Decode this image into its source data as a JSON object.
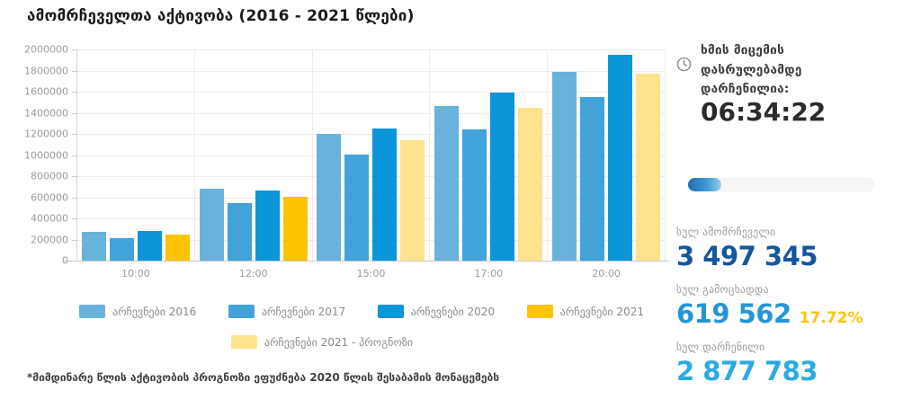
{
  "title": "ამომრჩეველთა აქტივობა (2016 - 2021 წლები)",
  "chart_data": {
    "type": "bar",
    "title": "ამომრჩეველთა აქტივობა (2016 - 2021 წლები)",
    "categories": [
      "10:00",
      "12:00",
      "15:00",
      "17:00",
      "20:00"
    ],
    "series": [
      {
        "name": "არჩევნები 2016",
        "color": "#68B2DC",
        "values": [
          270000,
          680000,
          1200000,
          1460000,
          1790000
        ]
      },
      {
        "name": "არჩევნები 2017",
        "color": "#41A3D9",
        "values": [
          215000,
          545000,
          1000000,
          1245000,
          1545000
        ]
      },
      {
        "name": "არჩევნები 2020",
        "color": "#0A96D9",
        "values": [
          280000,
          660000,
          1255000,
          1590000,
          1945000
        ]
      },
      {
        "name": "არჩევნები 2021",
        "color": "#FCC400",
        "values": [
          245000,
          605000,
          null,
          null,
          null
        ]
      },
      {
        "name": "არჩევნები 2021 - პროგნოზი",
        "color": "#FFE38C",
        "values": [
          null,
          null,
          1140000,
          1450000,
          1770000
        ]
      }
    ],
    "xlabel": "",
    "ylabel": "",
    "ylim": [
      0,
      2000000
    ],
    "y_step": 200000,
    "grid": true,
    "legend_position": "bottom"
  },
  "footnote": "*მიმდინარე წლის აქტივობის პროგნოზი ეფუძნება 2020 წლის შესაბამის მონაცემებს",
  "panel": {
    "countdown_label": "ხმის მიცემის\nდასრულებამდე\nდარჩენილია:",
    "time_remaining": "06:34:22",
    "progress_percent": 17.72,
    "stats": [
      {
        "label": "სულ ამომრჩეველი",
        "value": "3 497 345",
        "color": "#15569E",
        "percent": null
      },
      {
        "label": "სულ გამოცხადდა",
        "value": "619 562",
        "color": "#2396D8",
        "percent": "17.72%",
        "percent_color": "#F9C513"
      },
      {
        "label": "სულ დარჩენილი",
        "value": "2 877 783",
        "color": "#29ABE2",
        "percent": null
      }
    ]
  },
  "icons": {
    "clock": "clock-icon"
  }
}
